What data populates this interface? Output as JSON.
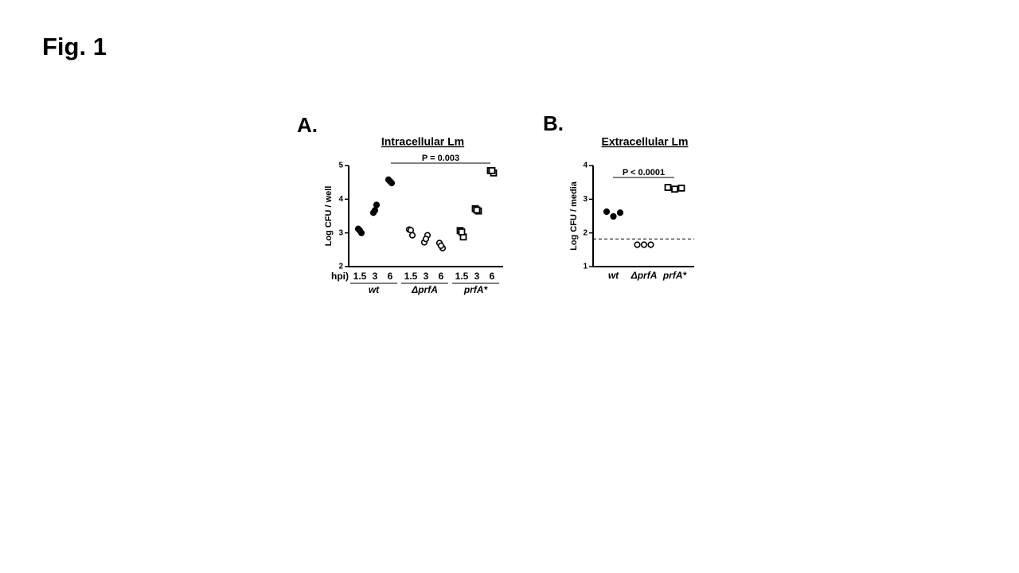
{
  "figure_title": "Fig. 1",
  "chart_data": [
    {
      "type": "dot",
      "panel_label": "A.",
      "title": "Intracellular Lm",
      "y_label": "Log CFU / well",
      "ylim": [
        2,
        5
      ],
      "yticks": [
        2,
        3,
        4,
        5
      ],
      "x_prefix": "hpi)",
      "color": "#000000",
      "annotation": "P = 0.003",
      "groups": [
        {
          "name": "wt",
          "marker": "filled-circle",
          "categories": [
            "1.5",
            "3",
            "6"
          ],
          "values": [
            [
              3.12,
              3.0,
              3.07
            ],
            [
              3.6,
              3.83,
              3.67
            ],
            [
              4.58,
              4.48,
              4.53
            ]
          ]
        },
        {
          "name": "ΔprfA",
          "marker": "open-circle",
          "categories": [
            "1.5",
            "3",
            "6"
          ],
          "values": [
            [
              3.1,
              2.93,
              3.08
            ],
            [
              2.72,
              2.93,
              2.82
            ],
            [
              2.7,
              2.55,
              2.62
            ]
          ]
        },
        {
          "name": "prfA*",
          "marker": "open-square",
          "categories": [
            "1.5",
            "3",
            "6"
          ],
          "values": [
            [
              3.07,
              2.88,
              3.03
            ],
            [
              3.72,
              3.65,
              3.68
            ],
            [
              4.85,
              4.78,
              4.85
            ]
          ]
        }
      ]
    },
    {
      "type": "dot",
      "panel_label": "B.",
      "title": "Extracellular Lm",
      "y_label": "Log CFU / media",
      "ylim": [
        1,
        4
      ],
      "yticks": [
        1,
        2,
        3,
        4
      ],
      "color": "#000000",
      "threshold": 1.82,
      "annotation": "P < 0.0001",
      "categories": [
        "wt",
        "ΔprfA",
        "prfA*"
      ],
      "markers": [
        "filled-circle",
        "open-circle",
        "open-square"
      ],
      "values": [
        [
          2.63,
          2.49,
          2.6
        ],
        [
          1.65,
          1.65,
          1.65
        ],
        [
          3.35,
          3.3,
          3.33
        ]
      ]
    }
  ]
}
